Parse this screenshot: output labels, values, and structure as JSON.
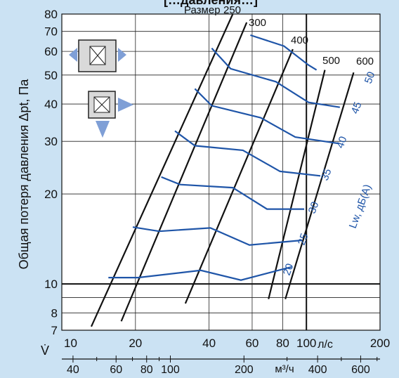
{
  "chart_data": {
    "type": "line",
    "y_scale": "log",
    "x_scale": "log",
    "x_unit": "л/с",
    "x_unit_secondary": "м³/ч",
    "flow_symbol": "V̇",
    "ylabel": "Общая потеря давления Δpt, Па",
    "title_cut": "[…давления…]",
    "ylim": [
      7,
      80
    ],
    "xlim": [
      10,
      200
    ],
    "y_ticks": [
      "7",
      "8",
      "10",
      "20",
      "30",
      "40",
      "50",
      "60",
      "70",
      "80"
    ],
    "x_ticks": [
      "10",
      "20",
      "40",
      "60",
      "80",
      "100",
      "200"
    ],
    "x2_ticks": [
      "40",
      "60",
      "80",
      "100",
      "200",
      "400",
      "600"
    ],
    "size_title": "Размер",
    "size_lines": [
      {
        "label": "250",
        "points": [
          [
            13.2,
            7.2
          ],
          [
            50,
            80
          ]
        ]
      },
      {
        "label": "300",
        "points": [
          [
            17.5,
            7.5
          ],
          [
            57,
            75
          ]
        ]
      },
      {
        "label": "400",
        "points": [
          [
            32,
            8.6
          ],
          [
            88,
            61
          ]
        ]
      },
      {
        "label": "500",
        "points": [
          [
            70,
            8.9
          ],
          [
            119,
            52
          ]
        ]
      },
      {
        "label": "600",
        "points": [
          [
            82,
            8.9
          ],
          [
            156,
            51
          ]
        ]
      }
    ],
    "noise_levels": [
      {
        "label": "20",
        "points": [
          [
            15.5,
            10.5
          ],
          [
            20.5,
            10.5
          ],
          [
            37,
            11.1
          ],
          [
            54,
            10.3
          ],
          [
            87,
            11.4
          ]
        ]
      },
      {
        "label": "25",
        "points": [
          [
            19.5,
            15.5
          ],
          [
            25,
            15
          ],
          [
            40.5,
            15.4
          ],
          [
            58.5,
            13.5
          ],
          [
            96,
            14
          ]
        ]
      },
      {
        "label": "30",
        "points": [
          [
            25.5,
            22.8
          ],
          [
            30.5,
            21.5
          ],
          [
            50,
            21
          ],
          [
            69,
            17.8
          ],
          [
            98,
            17.8
          ]
        ]
      },
      {
        "label": "35",
        "points": [
          [
            29,
            32.5
          ],
          [
            35,
            29
          ],
          [
            55,
            28
          ],
          [
            78,
            23.8
          ],
          [
            114,
            23
          ]
        ]
      },
      {
        "label": "40",
        "points": [
          [
            35,
            45
          ],
          [
            41,
            39.5
          ],
          [
            65,
            36
          ],
          [
            90,
            31
          ],
          [
            136,
            29.5
          ]
        ]
      },
      {
        "label": "45",
        "points": [
          [
            41,
            61.5
          ],
          [
            49,
            52.5
          ],
          [
            75,
            47.5
          ],
          [
            102,
            40.5
          ],
          [
            137,
            39
          ]
        ]
      },
      {
        "label": "50",
        "points": [
          [
            59,
            68
          ],
          [
            81,
            62.5
          ],
          [
            102,
            54
          ],
          [
            110,
            52
          ]
        ]
      }
    ],
    "lw_label": "Lw, дБ(А)"
  }
}
